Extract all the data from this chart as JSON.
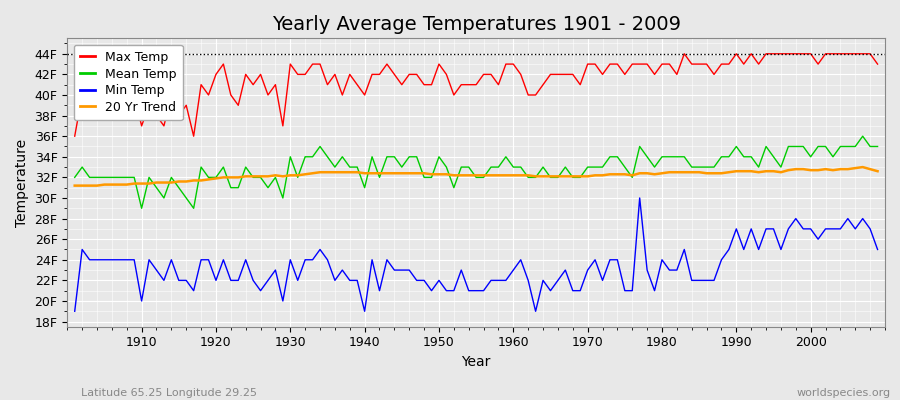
{
  "title": "Yearly Average Temperatures 1901 - 2009",
  "xlabel": "Year",
  "ylabel": "Temperature",
  "subtitle_left": "Latitude 65.25 Longitude 29.25",
  "subtitle_right": "worldspecies.org",
  "years": [
    1901,
    1902,
    1903,
    1904,
    1905,
    1906,
    1907,
    1908,
    1909,
    1910,
    1911,
    1912,
    1913,
    1914,
    1915,
    1916,
    1917,
    1918,
    1919,
    1920,
    1921,
    1922,
    1923,
    1924,
    1925,
    1926,
    1927,
    1928,
    1929,
    1930,
    1931,
    1932,
    1933,
    1934,
    1935,
    1936,
    1937,
    1938,
    1939,
    1940,
    1941,
    1942,
    1943,
    1944,
    1945,
    1946,
    1947,
    1948,
    1949,
    1950,
    1951,
    1952,
    1953,
    1954,
    1955,
    1956,
    1957,
    1958,
    1959,
    1960,
    1961,
    1962,
    1963,
    1964,
    1965,
    1966,
    1967,
    1968,
    1969,
    1970,
    1971,
    1972,
    1973,
    1974,
    1975,
    1976,
    1977,
    1978,
    1979,
    1980,
    1981,
    1982,
    1983,
    1984,
    1985,
    1986,
    1987,
    1988,
    1989,
    1990,
    1991,
    1992,
    1993,
    1994,
    1995,
    1996,
    1997,
    1998,
    1999,
    2000,
    2001,
    2002,
    2003,
    2004,
    2005,
    2006,
    2007,
    2008,
    2009
  ],
  "max_temp": [
    36,
    40,
    39,
    38,
    39,
    40,
    40,
    39,
    40,
    37,
    39,
    38,
    37,
    40,
    38,
    39,
    36,
    41,
    40,
    42,
    43,
    40,
    39,
    42,
    41,
    42,
    40,
    41,
    37,
    43,
    42,
    42,
    43,
    43,
    41,
    42,
    40,
    42,
    41,
    40,
    42,
    42,
    43,
    42,
    41,
    42,
    42,
    41,
    41,
    43,
    42,
    40,
    41,
    41,
    41,
    42,
    42,
    41,
    43,
    43,
    42,
    40,
    40,
    41,
    42,
    42,
    42,
    42,
    41,
    43,
    43,
    42,
    43,
    43,
    42,
    43,
    43,
    43,
    42,
    43,
    43,
    42,
    44,
    43,
    43,
    43,
    42,
    43,
    43,
    44,
    43,
    44,
    43,
    44,
    44,
    44,
    44,
    44,
    44,
    44,
    43,
    44,
    44,
    44,
    44,
    44,
    44,
    44,
    43
  ],
  "mean_temp": [
    32,
    33,
    32,
    32,
    32,
    32,
    32,
    32,
    32,
    29,
    32,
    31,
    30,
    32,
    31,
    30,
    29,
    33,
    32,
    32,
    33,
    31,
    31,
    33,
    32,
    32,
    31,
    32,
    30,
    34,
    32,
    34,
    34,
    35,
    34,
    33,
    34,
    33,
    33,
    31,
    34,
    32,
    34,
    34,
    33,
    34,
    34,
    32,
    32,
    34,
    33,
    31,
    33,
    33,
    32,
    32,
    33,
    33,
    34,
    33,
    33,
    32,
    32,
    33,
    32,
    32,
    33,
    32,
    32,
    33,
    33,
    33,
    34,
    34,
    33,
    32,
    35,
    34,
    33,
    34,
    34,
    34,
    34,
    33,
    33,
    33,
    33,
    34,
    34,
    35,
    34,
    34,
    33,
    35,
    34,
    33,
    35,
    35,
    35,
    34,
    35,
    35,
    34,
    35,
    35,
    35,
    36,
    35,
    35
  ],
  "min_temp": [
    19,
    25,
    24,
    24,
    24,
    24,
    24,
    24,
    24,
    20,
    24,
    23,
    22,
    24,
    22,
    22,
    21,
    24,
    24,
    22,
    24,
    22,
    22,
    24,
    22,
    21,
    22,
    23,
    20,
    24,
    22,
    24,
    24,
    25,
    24,
    22,
    23,
    22,
    22,
    19,
    24,
    21,
    24,
    23,
    23,
    23,
    22,
    22,
    21,
    22,
    21,
    21,
    23,
    21,
    21,
    21,
    22,
    22,
    22,
    23,
    24,
    22,
    19,
    22,
    21,
    22,
    23,
    21,
    21,
    23,
    24,
    22,
    24,
    24,
    21,
    21,
    30,
    23,
    21,
    24,
    23,
    23,
    25,
    22,
    22,
    22,
    22,
    24,
    25,
    27,
    25,
    27,
    25,
    27,
    27,
    25,
    27,
    28,
    27,
    27,
    26,
    27,
    27,
    27,
    28,
    27,
    28,
    27,
    25
  ],
  "trend_20yr": [
    31.2,
    31.2,
    31.2,
    31.2,
    31.3,
    31.3,
    31.3,
    31.3,
    31.4,
    31.4,
    31.4,
    31.5,
    31.5,
    31.5,
    31.6,
    31.6,
    31.7,
    31.7,
    31.8,
    31.9,
    32.0,
    32.0,
    32.0,
    32.1,
    32.1,
    32.1,
    32.1,
    32.2,
    32.1,
    32.2,
    32.2,
    32.3,
    32.4,
    32.5,
    32.5,
    32.5,
    32.5,
    32.5,
    32.5,
    32.4,
    32.4,
    32.4,
    32.4,
    32.4,
    32.4,
    32.4,
    32.4,
    32.4,
    32.3,
    32.3,
    32.3,
    32.2,
    32.2,
    32.2,
    32.2,
    32.2,
    32.2,
    32.2,
    32.2,
    32.2,
    32.2,
    32.2,
    32.1,
    32.1,
    32.1,
    32.1,
    32.1,
    32.1,
    32.1,
    32.1,
    32.2,
    32.2,
    32.3,
    32.3,
    32.3,
    32.2,
    32.4,
    32.4,
    32.3,
    32.4,
    32.5,
    32.5,
    32.5,
    32.5,
    32.5,
    32.4,
    32.4,
    32.4,
    32.5,
    32.6,
    32.6,
    32.6,
    32.5,
    32.6,
    32.6,
    32.5,
    32.7,
    32.8,
    32.8,
    32.7,
    32.7,
    32.8,
    32.7,
    32.8,
    32.8,
    32.9,
    33.0,
    32.8,
    32.6
  ],
  "max_color": "#ff0000",
  "mean_color": "#00cc00",
  "min_color": "#0000ff",
  "trend_color": "#ff9900",
  "bg_color": "#e8e8e8",
  "plot_bg": "#e8e8e8",
  "yticks": [
    18,
    20,
    22,
    24,
    26,
    28,
    30,
    32,
    34,
    36,
    38,
    40,
    42,
    44
  ],
  "ytick_labels": [
    "18F",
    "20F",
    "22F",
    "24F",
    "26F",
    "28F",
    "30F",
    "32F",
    "34F",
    "36F",
    "38F",
    "40F",
    "42F",
    "44F"
  ],
  "ylim": [
    17.5,
    45.5
  ],
  "xlim": [
    1900,
    2010
  ],
  "xticks": [
    1910,
    1920,
    1930,
    1940,
    1950,
    1960,
    1970,
    1980,
    1990,
    2000
  ],
  "dotted_line_y": 44,
  "grid_color": "#ffffff",
  "title_fontsize": 14,
  "axis_fontsize": 9,
  "legend_fontsize": 9
}
